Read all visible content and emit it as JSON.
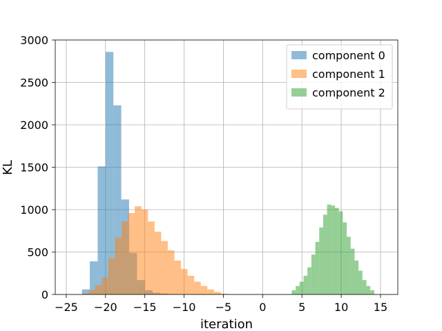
{
  "chart_data": {
    "type": "histogram",
    "title": "",
    "xlabel": "iteration",
    "ylabel": "KL",
    "xlim": [
      -26.4,
      17.2
    ],
    "ylim": [
      0,
      3000
    ],
    "xticks": [
      -25,
      -20,
      -15,
      -10,
      -5,
      0,
      5,
      10,
      15
    ],
    "yticks": [
      0,
      500,
      1000,
      1500,
      2000,
      2500,
      3000
    ],
    "grid": true,
    "legend_position": "top-right",
    "bar_opacity": 0.5,
    "series": [
      {
        "name": "component 0",
        "color": "#1f77b4",
        "bin_start": -23.0,
        "bin_width": 1.0,
        "counts": [
          60,
          390,
          1510,
          2860,
          2230,
          1120,
          490,
          170,
          50,
          20,
          10,
          5
        ]
      },
      {
        "name": "component 1",
        "color": "#ff7f0e",
        "bin_start": -23.0,
        "bin_width": 0.84,
        "counts": [
          10,
          50,
          110,
          200,
          430,
          670,
          860,
          960,
          1040,
          1000,
          860,
          740,
          630,
          520,
          400,
          300,
          220,
          150,
          100,
          60,
          30,
          10
        ]
      },
      {
        "name": "component 2",
        "color": "#2ca02c",
        "bin_start": 3.7,
        "bin_width": 0.5,
        "counts": [
          50,
          100,
          150,
          220,
          320,
          470,
          620,
          790,
          940,
          1060,
          1050,
          1020,
          980,
          850,
          680,
          540,
          400,
          280,
          170,
          100,
          50
        ]
      }
    ]
  }
}
